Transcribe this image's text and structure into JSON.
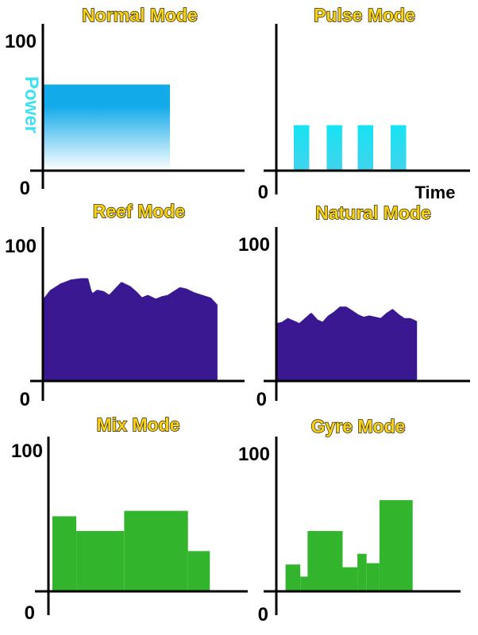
{
  "chart_data": [
    {
      "type": "area",
      "title": "Normal Mode",
      "ylabel": "Power",
      "xlabel": "",
      "ylim": [
        0,
        100
      ],
      "xlim": [
        0,
        10
      ],
      "y_tick_labels": [
        "0",
        "100"
      ],
      "color": "#13aaea",
      "gradient": true,
      "shape": "block",
      "x": [
        0,
        6.3
      ],
      "values": [
        70,
        70
      ]
    },
    {
      "type": "bar",
      "title": "Pulse Mode",
      "xlabel": "Time",
      "ylabel": "",
      "ylim": [
        0,
        100
      ],
      "xlim": [
        0,
        10
      ],
      "y_tick_labels": [
        "0",
        ""
      ],
      "color": "#17e3f4",
      "bars": [
        {
          "x0": 0.9,
          "x1": 1.7,
          "value": 37
        },
        {
          "x0": 2.6,
          "x1": 3.4,
          "value": 37
        },
        {
          "x0": 4.2,
          "x1": 5.0,
          "value": 37
        },
        {
          "x0": 5.9,
          "x1": 6.7,
          "value": 37
        }
      ]
    },
    {
      "type": "area",
      "title": "Reef Mode",
      "xlabel": "",
      "ylabel": "",
      "ylim": [
        0,
        100
      ],
      "xlim": [
        0,
        10
      ],
      "y_tick_labels": [
        "0",
        "100"
      ],
      "color": "#3a1892",
      "shape": "profile",
      "x": [
        0,
        0.4,
        0.9,
        1.4,
        1.9,
        2.2,
        2.35,
        2.45,
        2.7,
        3.0,
        3.3,
        3.6,
        3.9,
        4.3,
        4.6,
        4.9,
        5.2,
        5.6,
        5.9,
        6.2,
        6.5,
        6.8,
        7.1,
        7.5,
        7.9,
        8.3,
        8.6
      ],
      "values": [
        62,
        70,
        75,
        78,
        79,
        79,
        70,
        67,
        70,
        69,
        66,
        71,
        76,
        73,
        69,
        64,
        66,
        63,
        65,
        66,
        69,
        72,
        71,
        68,
        66,
        64,
        59
      ]
    },
    {
      "type": "area",
      "title": "Natural Mode",
      "xlabel": "",
      "ylabel": "",
      "ylim": [
        0,
        100
      ],
      "xlim": [
        0,
        10
      ],
      "y_tick_labels": [
        "0",
        "100"
      ],
      "color": "#3a1892",
      "shape": "profile",
      "x": [
        0,
        0.3,
        0.6,
        0.9,
        1.2,
        1.5,
        1.8,
        2.1,
        2.4,
        2.7,
        3.0,
        3.3,
        3.6,
        3.9,
        4.2,
        4.5,
        4.8,
        5.1,
        5.4,
        5.7,
        6.0,
        6.3,
        6.6,
        6.9,
        7.2
      ],
      "values": [
        44,
        45,
        48,
        46,
        44,
        48,
        52,
        47,
        45,
        50,
        53,
        57,
        57,
        54,
        51,
        49,
        50,
        49,
        48,
        52,
        55,
        51,
        48,
        48,
        46
      ]
    },
    {
      "type": "bar",
      "title": "Mix Mode",
      "xlabel": "",
      "ylabel": "",
      "ylim": [
        0,
        100
      ],
      "xlim": [
        0,
        10
      ],
      "y_tick_labels": [
        "0",
        "100"
      ],
      "color": "#32b52c",
      "bars": [
        {
          "x0": 0.2,
          "x1": 1.4,
          "value": 56
        },
        {
          "x0": 1.4,
          "x1": 3.8,
          "value": 45
        },
        {
          "x0": 3.8,
          "x1": 7.0,
          "value": 60
        },
        {
          "x0": 7.0,
          "x1": 8.1,
          "value": 30
        }
      ]
    },
    {
      "type": "bar",
      "title": "Gyre Mode",
      "xlabel": "",
      "ylabel": "",
      "ylim": [
        0,
        100
      ],
      "xlim": [
        0,
        10
      ],
      "y_tick_labels": [
        "0",
        "100"
      ],
      "color": "#32b52c",
      "bars": [
        {
          "x0": 0.5,
          "x1": 1.3,
          "value": 20
        },
        {
          "x0": 1.3,
          "x1": 1.7,
          "value": 11
        },
        {
          "x0": 1.7,
          "x1": 3.6,
          "value": 45
        },
        {
          "x0": 3.6,
          "x1": 4.4,
          "value": 18
        },
        {
          "x0": 4.4,
          "x1": 4.9,
          "value": 28
        },
        {
          "x0": 4.9,
          "x1": 5.6,
          "value": 21
        },
        {
          "x0": 5.6,
          "x1": 7.4,
          "value": 68
        }
      ]
    }
  ]
}
